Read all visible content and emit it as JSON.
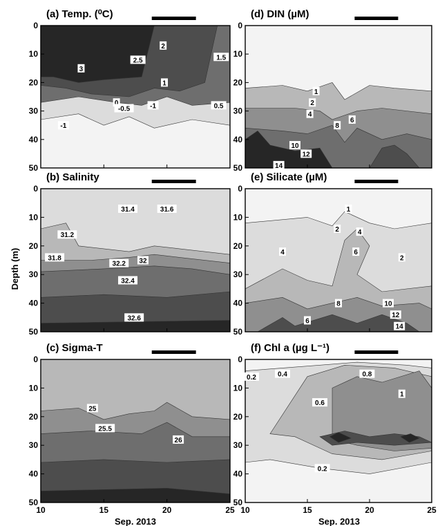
{
  "figure": {
    "ylabel": "Depth (m)",
    "xlabel": "Sep. 2013"
  },
  "colors": {
    "very_dark": "#262626",
    "dark": "#4d4d4d",
    "mid_dark": "#6e6e6e",
    "mid": "#8f8f8f",
    "light": "#b8b8b8",
    "very_light": "#dcdcdc",
    "near_white": "#f3f3f3",
    "bar": "#000000"
  },
  "chart_data": [
    {
      "id": "a",
      "type": "heatmap",
      "title": "(a) Temp. (⁰C)",
      "xlim": [
        10,
        25
      ],
      "ylim": [
        50,
        0
      ],
      "xticks": [
        10,
        15,
        20,
        25
      ],
      "yticks": [
        0,
        10,
        20,
        30,
        40,
        50
      ],
      "bar": [
        18.8,
        22.3
      ],
      "contour_labels": [
        {
          "text": "2",
          "x": 19.7,
          "y": 7
        },
        {
          "text": "1.5",
          "x": 24.3,
          "y": 11
        },
        {
          "text": "2.5",
          "x": 17.7,
          "y": 12
        },
        {
          "text": "3",
          "x": 13.2,
          "y": 15
        },
        {
          "text": "1",
          "x": 19.8,
          "y": 20
        },
        {
          "text": "0",
          "x": 16.0,
          "y": 27
        },
        {
          "text": "-0.5",
          "x": 16.6,
          "y": 29
        },
        {
          "text": "-1",
          "x": 18.9,
          "y": 28
        },
        {
          "text": "0.5",
          "x": 24.1,
          "y": 28
        },
        {
          "text": "-1",
          "x": 11.8,
          "y": 35
        }
      ]
    },
    {
      "id": "d",
      "type": "heatmap",
      "title": "(d) DIN (µM)",
      "xlim": [
        10,
        25
      ],
      "ylim": [
        50,
        0
      ],
      "xticks": [
        10,
        15,
        20,
        25
      ],
      "yticks": [
        0,
        10,
        20,
        30,
        40,
        50
      ],
      "bar": [
        18.8,
        22.3
      ],
      "contour_labels": [
        {
          "text": "1",
          "x": 15.7,
          "y": 23
        },
        {
          "text": "2",
          "x": 15.4,
          "y": 27
        },
        {
          "text": "4",
          "x": 15.2,
          "y": 31
        },
        {
          "text": "8",
          "x": 17.4,
          "y": 35
        },
        {
          "text": "6",
          "x": 18.6,
          "y": 33
        },
        {
          "text": "10",
          "x": 14.0,
          "y": 42
        },
        {
          "text": "12",
          "x": 14.9,
          "y": 45
        },
        {
          "text": "14",
          "x": 12.7,
          "y": 49
        }
      ]
    },
    {
      "id": "b",
      "type": "heatmap",
      "title": "(b) Salinity",
      "xlim": [
        10,
        25
      ],
      "ylim": [
        50,
        0
      ],
      "xticks": [
        10,
        15,
        20,
        25
      ],
      "yticks": [
        0,
        10,
        20,
        30,
        40,
        50
      ],
      "bar": [
        18.8,
        22.3
      ],
      "contour_labels": [
        {
          "text": "31.4",
          "x": 16.9,
          "y": 7
        },
        {
          "text": "31.6",
          "x": 20.0,
          "y": 7
        },
        {
          "text": "31.2",
          "x": 12.1,
          "y": 16
        },
        {
          "text": "31.8",
          "x": 11.1,
          "y": 24
        },
        {
          "text": "32.2",
          "x": 16.2,
          "y": 26
        },
        {
          "text": "32",
          "x": 18.1,
          "y": 25
        },
        {
          "text": "32.4",
          "x": 16.9,
          "y": 32
        },
        {
          "text": "32.6",
          "x": 17.4,
          "y": 45
        }
      ]
    },
    {
      "id": "e",
      "type": "heatmap",
      "title": "(e) Silicate (µM)",
      "xlim": [
        10,
        25
      ],
      "ylim": [
        50,
        0
      ],
      "xticks": [
        10,
        15,
        20,
        25
      ],
      "yticks": [
        0,
        10,
        20,
        30,
        40,
        50
      ],
      "bar": [
        18.8,
        22.3
      ],
      "contour_labels": [
        {
          "text": "1",
          "x": 18.3,
          "y": 7
        },
        {
          "text": "2",
          "x": 17.4,
          "y": 14
        },
        {
          "text": "4",
          "x": 19.2,
          "y": 15
        },
        {
          "text": "6",
          "x": 18.9,
          "y": 22
        },
        {
          "text": "4",
          "x": 13.0,
          "y": 22
        },
        {
          "text": "2",
          "x": 22.6,
          "y": 24
        },
        {
          "text": "8",
          "x": 17.5,
          "y": 40
        },
        {
          "text": "10",
          "x": 21.5,
          "y": 40
        },
        {
          "text": "12",
          "x": 22.1,
          "y": 44
        },
        {
          "text": "14",
          "x": 22.4,
          "y": 48
        },
        {
          "text": "6",
          "x": 15.0,
          "y": 46
        }
      ]
    },
    {
      "id": "c",
      "type": "heatmap",
      "title": "(c) Sigma-T",
      "xlim": [
        10,
        25
      ],
      "ylim": [
        50,
        0
      ],
      "xticks": [
        10,
        15,
        20,
        25
      ],
      "yticks": [
        0,
        10,
        20,
        30,
        40,
        50
      ],
      "bar": [
        18.8,
        22.3
      ],
      "contour_labels": [
        {
          "text": "25",
          "x": 14.1,
          "y": 17
        },
        {
          "text": "25.5",
          "x": 15.1,
          "y": 24
        },
        {
          "text": "26",
          "x": 20.9,
          "y": 28
        }
      ]
    },
    {
      "id": "f",
      "type": "heatmap",
      "title": "(f) Chl a (µg L⁻¹)",
      "xlim": [
        10,
        25
      ],
      "ylim": [
        50,
        0
      ],
      "xticks": [
        10,
        15,
        20,
        25
      ],
      "yticks": [
        0,
        10,
        20,
        30,
        40,
        50
      ],
      "bar": [
        18.8,
        22.3
      ],
      "contour_labels": [
        {
          "text": "0.2",
          "x": 10.5,
          "y": 6
        },
        {
          "text": "0.4",
          "x": 13.0,
          "y": 5
        },
        {
          "text": "0.8",
          "x": 19.8,
          "y": 5
        },
        {
          "text": "0.6",
          "x": 16.0,
          "y": 15
        },
        {
          "text": "1",
          "x": 22.6,
          "y": 12
        },
        {
          "text": "0.2",
          "x": 16.2,
          "y": 38
        }
      ]
    }
  ]
}
